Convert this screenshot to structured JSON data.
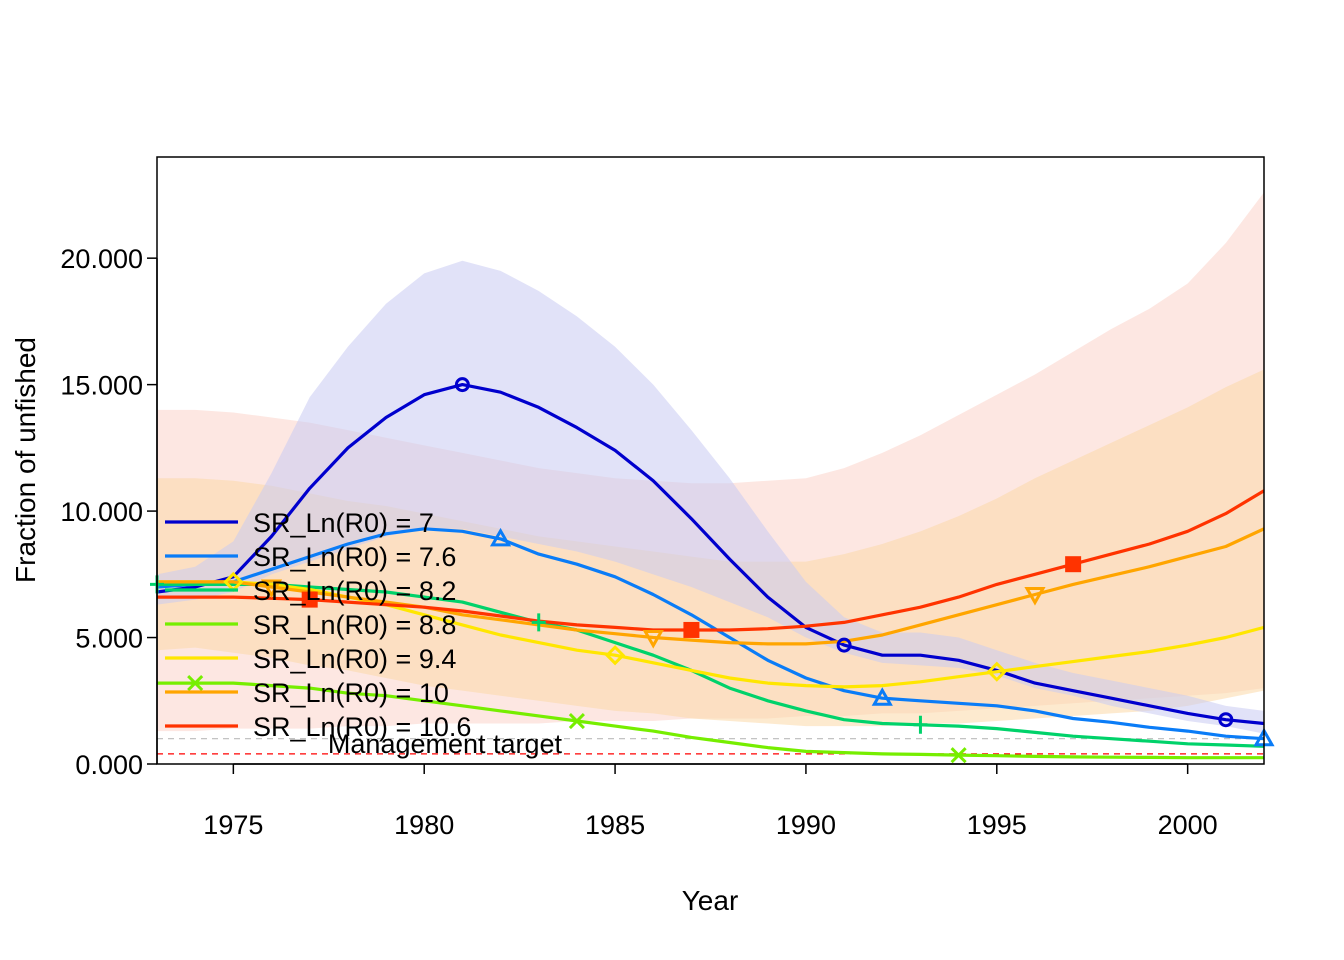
{
  "chart_data": {
    "type": "line",
    "xlabel": "Year",
    "ylabel": "Fraction of unfished",
    "xlim": [
      1973,
      2002
    ],
    "ylim": [
      0,
      24
    ],
    "x_ticks": [
      1975,
      1980,
      1985,
      1990,
      1995,
      2000
    ],
    "y_ticks": [
      0,
      5,
      10,
      15,
      20
    ],
    "y_tick_labels": [
      "0.000",
      "5.000",
      "10.000",
      "15.000",
      "20.000"
    ],
    "x": [
      1973,
      1974,
      1975,
      1976,
      1977,
      1978,
      1979,
      1980,
      1981,
      1982,
      1983,
      1984,
      1985,
      1986,
      1987,
      1988,
      1989,
      1990,
      1991,
      1992,
      1993,
      1994,
      1995,
      1996,
      1997,
      1998,
      1999,
      2000,
      2001,
      2002
    ],
    "legend_position": "left",
    "reference_lines": [
      {
        "label": "Management target",
        "y": 0.4,
        "color": "#ff0000",
        "style": "dashed"
      },
      {
        "label": "",
        "y": 1.0,
        "color": "#bbbbbb",
        "style": "dashed"
      }
    ],
    "series": [
      {
        "name": "SR_Ln(R0) =  7",
        "color": "#0000cd",
        "band_color": "#c8cbf2",
        "marker": "circle",
        "values": [
          6.8,
          7.0,
          7.4,
          9.0,
          10.9,
          12.5,
          13.7,
          14.6,
          15.0,
          14.7,
          14.1,
          13.3,
          12.4,
          11.2,
          9.7,
          8.1,
          6.6,
          5.4,
          4.7,
          4.3,
          4.3,
          4.1,
          3.7,
          3.2,
          2.9,
          2.6,
          2.3,
          2.0,
          1.75,
          1.6
        ],
        "lower": [
          6.3,
          6.5,
          6.8,
          7.5,
          8.0,
          8.5,
          9.0,
          9.3,
          9.3,
          9.0,
          8.7,
          8.4,
          8.0,
          7.5,
          7.0,
          6.4,
          5.8,
          5.0,
          4.4,
          4.0,
          3.9,
          3.8,
          3.5,
          3.0,
          2.7,
          2.3,
          2.0,
          1.7,
          1.5,
          1.2
        ],
        "upper": [
          7.5,
          7.8,
          8.8,
          11.5,
          14.5,
          16.5,
          18.2,
          19.4,
          19.9,
          19.5,
          18.7,
          17.7,
          16.5,
          15.0,
          13.2,
          11.3,
          9.2,
          7.2,
          5.8,
          5.2,
          5.2,
          5.0,
          4.5,
          4.0,
          3.6,
          3.3,
          3.0,
          2.7,
          2.3,
          2.1
        ]
      },
      {
        "name": "SR_Ln(R0) =  7.6",
        "color": "#0a7cf7",
        "band_color": "#cfe0f5",
        "marker": "triangle-up",
        "values": [
          7.0,
          7.1,
          7.2,
          7.7,
          8.2,
          8.7,
          9.1,
          9.3,
          9.2,
          8.9,
          8.3,
          7.9,
          7.4,
          6.7,
          5.9,
          5.0,
          4.1,
          3.4,
          2.9,
          2.6,
          2.5,
          2.4,
          2.3,
          2.1,
          1.8,
          1.65,
          1.45,
          1.3,
          1.1,
          1.0
        ]
      },
      {
        "name": "SR_Ln(R0) =  8.2",
        "color": "#00d26a",
        "band_color": "#cdeede",
        "marker": "plus",
        "values": [
          7.1,
          7.1,
          7.1,
          7.1,
          7.0,
          6.9,
          6.8,
          6.6,
          6.4,
          6.0,
          5.6,
          5.3,
          4.8,
          4.3,
          3.7,
          3.0,
          2.5,
          2.1,
          1.75,
          1.6,
          1.55,
          1.5,
          1.4,
          1.25,
          1.1,
          1.0,
          0.9,
          0.8,
          0.75,
          0.7
        ]
      },
      {
        "name": "SR_Ln(R0) =  8.8",
        "color": "#76ee00",
        "band_color": "#e0f5c8",
        "marker": "cross",
        "values": [
          3.2,
          3.2,
          3.2,
          3.1,
          3.0,
          2.8,
          2.7,
          2.5,
          2.3,
          2.1,
          1.9,
          1.7,
          1.5,
          1.3,
          1.05,
          0.85,
          0.65,
          0.5,
          0.45,
          0.4,
          0.38,
          0.35,
          0.33,
          0.3,
          0.28,
          0.27,
          0.26,
          0.25,
          0.25,
          0.25
        ]
      },
      {
        "name": "SR_Ln(R0) =  9.4",
        "color": "#ffe600",
        "band_color": "#fbf1bf",
        "marker": "diamond",
        "values": [
          7.2,
          7.2,
          7.2,
          7.1,
          6.9,
          6.6,
          6.3,
          5.9,
          5.5,
          5.1,
          4.8,
          4.5,
          4.3,
          4.0,
          3.7,
          3.4,
          3.2,
          3.1,
          3.05,
          3.1,
          3.25,
          3.45,
          3.65,
          3.85,
          4.05,
          4.25,
          4.45,
          4.7,
          5.0,
          5.4
        ]
      },
      {
        "name": "SR_Ln(R0) =  10",
        "color": "#ffa500",
        "band_color": "#fbd8a8",
        "marker": "triangle-down",
        "values": [
          7.2,
          7.2,
          7.2,
          7.0,
          6.8,
          6.6,
          6.4,
          6.2,
          5.9,
          5.7,
          5.5,
          5.3,
          5.15,
          5.0,
          4.9,
          4.8,
          4.75,
          4.75,
          4.85,
          5.1,
          5.5,
          5.9,
          6.3,
          6.7,
          7.1,
          7.45,
          7.8,
          8.2,
          8.6,
          9.3
        ],
        "lower": [
          4.5,
          4.6,
          4.4,
          4.2,
          3.9,
          3.7,
          3.4,
          3.1,
          2.9,
          2.7,
          2.5,
          2.3,
          2.1,
          2.0,
          1.8,
          1.7,
          1.6,
          1.5,
          1.5,
          1.5,
          1.6,
          1.6,
          1.7,
          1.8,
          1.9,
          2.0,
          2.1,
          2.3,
          2.6,
          2.9
        ],
        "upper": [
          11.3,
          11.3,
          11.2,
          11.0,
          10.7,
          10.4,
          10.2,
          9.9,
          9.6,
          9.3,
          9.0,
          8.8,
          8.6,
          8.4,
          8.2,
          8.0,
          8.0,
          8.0,
          8.3,
          8.7,
          9.2,
          9.8,
          10.5,
          11.3,
          12.0,
          12.7,
          13.4,
          14.1,
          14.9,
          15.6
        ]
      },
      {
        "name": "SR_Ln(R0) =  10.6",
        "color": "#ff3300",
        "band_color": "#fbd3cb",
        "marker": "square",
        "values": [
          6.6,
          6.6,
          6.6,
          6.55,
          6.5,
          6.4,
          6.3,
          6.2,
          6.05,
          5.85,
          5.65,
          5.5,
          5.4,
          5.3,
          5.3,
          5.3,
          5.35,
          5.45,
          5.6,
          5.9,
          6.2,
          6.6,
          7.1,
          7.5,
          7.9,
          8.3,
          8.7,
          9.2,
          9.9,
          10.8
        ],
        "lower": [
          1.3,
          1.3,
          1.4,
          1.4,
          1.4,
          1.5,
          1.5,
          1.6,
          1.6,
          1.6,
          1.6,
          1.7,
          1.7,
          1.7,
          1.8,
          1.8,
          1.8,
          1.9,
          1.9,
          2.0,
          2.0,
          2.1,
          2.2,
          2.3,
          2.4,
          2.5,
          2.6,
          2.7,
          2.8,
          3.0
        ],
        "upper": [
          14.0,
          14.0,
          13.9,
          13.7,
          13.5,
          13.2,
          12.9,
          12.6,
          12.3,
          12.0,
          11.7,
          11.5,
          11.3,
          11.2,
          11.1,
          11.1,
          11.2,
          11.3,
          11.7,
          12.3,
          13.0,
          13.8,
          14.6,
          15.4,
          16.3,
          17.2,
          18.0,
          19.0,
          20.6,
          22.6
        ]
      }
    ],
    "marker_points": [
      {
        "series": 0,
        "x": [
          1981,
          1991,
          2001
        ]
      },
      {
        "series": 1,
        "x": [
          1982,
          1992,
          2002
        ]
      },
      {
        "series": 2,
        "x": [
          1973,
          1983,
          1993
        ]
      },
      {
        "series": 3,
        "x": [
          1974,
          1984,
          1994
        ]
      },
      {
        "series": 4,
        "x": [
          1975,
          1985,
          1995
        ]
      },
      {
        "series": 5,
        "x": [
          1976,
          1986,
          1996
        ]
      },
      {
        "series": 6,
        "x": [
          1977,
          1987,
          1997
        ]
      }
    ]
  }
}
